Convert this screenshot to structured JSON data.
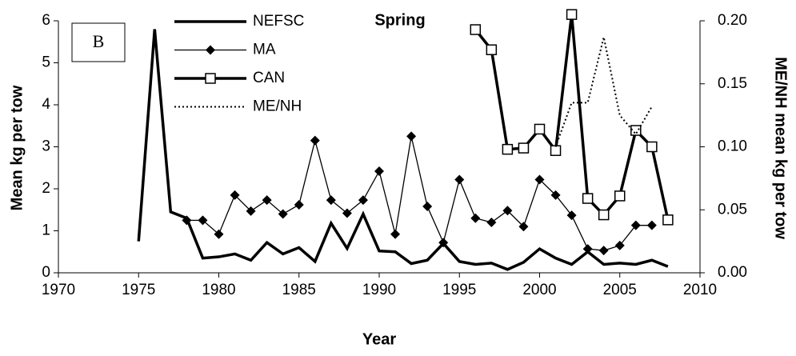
{
  "chart_data": {
    "type": "line",
    "title": "Spring",
    "panel_label": "B",
    "xlabel": "Year",
    "ylabel": "Mean kg per tow",
    "y2label": "ME/NH mean kg per tow",
    "xlim": [
      1970,
      2010
    ],
    "xticks": [
      1970,
      1975,
      1980,
      1985,
      1990,
      1995,
      2000,
      2005,
      2010
    ],
    "ylim": [
      0,
      6
    ],
    "yticks": [
      0,
      1,
      2,
      3,
      4,
      5,
      6
    ],
    "y2lim": [
      0,
      0.2
    ],
    "y2ticks": [
      {
        "value": 0,
        "label": "0.00"
      },
      {
        "value": 0.05,
        "label": "0.05"
      },
      {
        "value": 0.1,
        "label": "0.10"
      },
      {
        "value": 0.15,
        "label": "0.15"
      },
      {
        "value": 0.2,
        "label": "0.20"
      }
    ],
    "legend": "upper left",
    "series": [
      {
        "name": "NEFSC",
        "color": "#000000",
        "style": "thick",
        "marker": "none",
        "x": [
          1975,
          1976,
          1977,
          1978,
          1979,
          1980,
          1981,
          1982,
          1983,
          1984,
          1985,
          1986,
          1987,
          1988,
          1989,
          1990,
          1991,
          1992,
          1993,
          1994,
          1995,
          1996,
          1997,
          1998,
          1999,
          2000,
          2001,
          2002,
          2003,
          2004,
          2005,
          2006,
          2007,
          2008
        ],
        "values": [
          0.75,
          5.8,
          1.45,
          1.3,
          0.35,
          0.38,
          0.45,
          0.3,
          0.72,
          0.45,
          0.6,
          0.27,
          1.18,
          0.58,
          1.4,
          0.52,
          0.5,
          0.22,
          0.3,
          0.7,
          0.27,
          0.2,
          0.23,
          0.08,
          0.25,
          0.57,
          0.35,
          0.2,
          0.5,
          0.2,
          0.23,
          0.2,
          0.3,
          0.15
        ]
      },
      {
        "name": "MA",
        "color": "#000000",
        "style": "thin",
        "marker": "diamond",
        "x": [
          1978,
          1979,
          1980,
          1981,
          1982,
          1983,
          1984,
          1985,
          1986,
          1987,
          1988,
          1989,
          1990,
          1991,
          1992,
          1993,
          1994,
          1995,
          1996,
          1997,
          1998,
          1999,
          2000,
          2001,
          2002,
          2003,
          2004,
          2005,
          2006,
          2007
        ],
        "values": [
          1.25,
          1.25,
          0.92,
          1.85,
          1.47,
          1.73,
          1.4,
          1.62,
          3.15,
          1.73,
          1.42,
          1.73,
          2.42,
          0.92,
          3.25,
          1.58,
          0.72,
          2.22,
          1.3,
          1.2,
          1.48,
          1.1,
          2.22,
          1.85,
          1.37,
          0.57,
          0.53,
          0.65,
          1.13,
          1.13
        ]
      },
      {
        "name": "CAN",
        "color": "#000000",
        "style": "thick",
        "marker": "square",
        "axis": "y2",
        "x": [
          1996,
          1997,
          1998,
          1999,
          2000,
          2001,
          2002,
          2003,
          2004,
          2005,
          2006,
          2007,
          2008
        ],
        "values": [
          0.193,
          0.177,
          0.098,
          0.099,
          0.114,
          0.097,
          0.205,
          0.059,
          0.046,
          0.061,
          0.113,
          0.1,
          0.042
        ]
      },
      {
        "name": "ME/NH",
        "color": "#000000",
        "style": "dotted",
        "marker": "none",
        "axis": "y2",
        "x": [
          2001,
          2002,
          2003,
          2004,
          2005,
          2006,
          2007
        ],
        "values": [
          0.1,
          0.135,
          0.135,
          0.187,
          0.125,
          0.11,
          0.132
        ]
      }
    ]
  }
}
